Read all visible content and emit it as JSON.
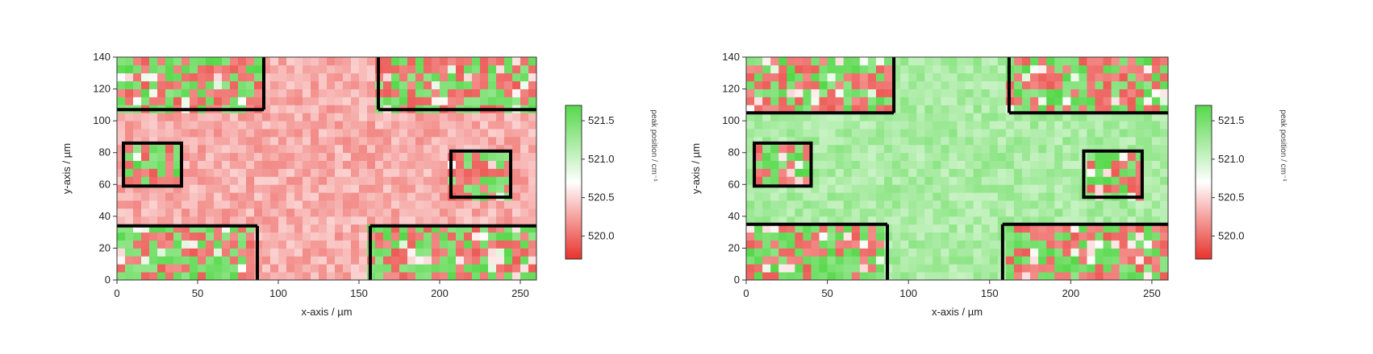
{
  "chart_data": [
    {
      "type": "heatmap",
      "xlabel": "x-axis / µm",
      "ylabel": "y-axis / µm",
      "xlim": [
        0,
        260
      ],
      "ylim": [
        0,
        140
      ],
      "x_ticks": [
        "0",
        "50",
        "100",
        "150",
        "200",
        "250"
      ],
      "y_ticks": [
        "0",
        "20",
        "40",
        "60",
        "80",
        "100",
        "120",
        "140"
      ],
      "grid": {
        "cols": 52,
        "rows": 28,
        "cell_um": 5
      },
      "background_peak": 520.3,
      "colorbar": {
        "label": "peak position / cm⁻¹",
        "ticks": [
          "521.5",
          "521.0",
          "520.5",
          "520.0"
        ],
        "tick_values": [
          521.5,
          521.0,
          520.5,
          520.0
        ],
        "range": [
          519.7,
          521.7
        ],
        "colors": [
          "#e8322c",
          "#ffffff",
          "#56d84a"
        ]
      },
      "regions": [
        {
          "name": "top-left",
          "x": [
            0,
            91
          ],
          "y": [
            107,
            140
          ]
        },
        {
          "name": "top-right",
          "x": [
            162,
            260
          ],
          "y": [
            107,
            140
          ]
        },
        {
          "name": "mid-left",
          "x": [
            4,
            40
          ],
          "y": [
            59,
            86
          ]
        },
        {
          "name": "mid-right",
          "x": [
            207,
            244
          ],
          "y": [
            52,
            81
          ]
        },
        {
          "name": "bottom-left",
          "x": [
            0,
            87
          ],
          "y": [
            0,
            34
          ]
        },
        {
          "name": "bottom-right",
          "x": [
            157,
            260
          ],
          "y": [
            0,
            34
          ]
        }
      ]
    },
    {
      "type": "heatmap",
      "xlabel": "x-axis / µm",
      "ylabel": "y-axis / µm",
      "xlim": [
        0,
        260
      ],
      "ylim": [
        0,
        140
      ],
      "x_ticks": [
        "0",
        "50",
        "100",
        "150",
        "200",
        "250"
      ],
      "y_ticks": [
        "0",
        "20",
        "40",
        "60",
        "80",
        "100",
        "120",
        "140"
      ],
      "grid": {
        "cols": 52,
        "rows": 28,
        "cell_um": 5
      },
      "background_peak": 521.2,
      "colorbar": {
        "label": "peak position / cm⁻¹",
        "ticks": [
          "521.5",
          "521.0",
          "520.5",
          "520.0"
        ],
        "tick_values": [
          521.5,
          521.0,
          520.5,
          520.0
        ],
        "range": [
          519.7,
          521.7
        ],
        "colors": [
          "#e8322c",
          "#ffffff",
          "#56d84a"
        ]
      },
      "regions": [
        {
          "name": "top-left",
          "x": [
            0,
            91
          ],
          "y": [
            105,
            140
          ]
        },
        {
          "name": "top-right",
          "x": [
            162,
            260
          ],
          "y": [
            105,
            140
          ]
        },
        {
          "name": "mid-left",
          "x": [
            5,
            40
          ],
          "y": [
            59,
            86
          ]
        },
        {
          "name": "mid-right",
          "x": [
            208,
            244
          ],
          "y": [
            52,
            81
          ]
        },
        {
          "name": "bottom-left",
          "x": [
            0,
            87
          ],
          "y": [
            0,
            35
          ]
        },
        {
          "name": "bottom-right",
          "x": [
            158,
            260
          ],
          "y": [
            0,
            35
          ]
        }
      ]
    }
  ]
}
